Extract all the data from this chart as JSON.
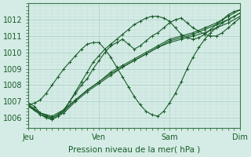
{
  "title": "",
  "xlabel": "Pression niveau de la mer( hPa )",
  "ylabel": "",
  "bg_color": "#d4ece5",
  "plot_bg_color": "#d4ece5",
  "grid_color_major": "#aaccc4",
  "grid_color_minor": "#bdd9d2",
  "line_color": "#1a5c2a",
  "marker_color": "#1a5c2a",
  "tick_label_color": "#1a5c2a",
  "axis_color": "#3a7a4a",
  "ylim": [
    1005.4,
    1013.0
  ],
  "yticks": [
    1006,
    1007,
    1008,
    1009,
    1010,
    1011,
    1012
  ],
  "day_labels": [
    "Jeu",
    "Ven",
    "Sam",
    "Dim"
  ],
  "day_positions": [
    0,
    72,
    144,
    216
  ],
  "total_hours": 216,
  "series": [
    {
      "x": [
        0,
        12,
        24,
        36,
        48,
        60,
        72,
        84,
        96,
        108,
        120,
        132,
        144,
        156,
        168,
        180,
        192,
        204,
        216
      ],
      "y": [
        1006.7,
        1006.3,
        1006.1,
        1006.5,
        1007.1,
        1007.7,
        1008.2,
        1008.7,
        1009.1,
        1009.5,
        1009.9,
        1010.3,
        1010.6,
        1010.8,
        1011.0,
        1011.2,
        1011.5,
        1011.8,
        1012.2
      ]
    },
    {
      "x": [
        0,
        12,
        24,
        36,
        48,
        60,
        72,
        84,
        96,
        108,
        120,
        132,
        144,
        156,
        168,
        180,
        192,
        204,
        216
      ],
      "y": [
        1006.7,
        1006.2,
        1005.9,
        1006.3,
        1007.0,
        1007.6,
        1008.1,
        1008.6,
        1009.1,
        1009.5,
        1009.9,
        1010.3,
        1010.7,
        1010.9,
        1011.1,
        1011.4,
        1011.7,
        1012.0,
        1012.4
      ]
    },
    {
      "x": [
        0,
        12,
        24,
        36,
        48,
        60,
        72,
        84,
        96,
        108,
        120,
        132,
        144,
        156,
        168,
        180,
        192,
        204,
        216
      ],
      "y": [
        1006.8,
        1006.3,
        1006.0,
        1006.4,
        1007.1,
        1007.7,
        1008.2,
        1008.8,
        1009.2,
        1009.6,
        1010.0,
        1010.4,
        1010.8,
        1011.0,
        1011.2,
        1011.5,
        1011.8,
        1012.2,
        1012.6
      ]
    },
    {
      "x": [
        0,
        6,
        12,
        18,
        24,
        30,
        36,
        42,
        48,
        54,
        60,
        66,
        72,
        78,
        84,
        90,
        96,
        102,
        108,
        114,
        120,
        126,
        132,
        138,
        144,
        150,
        156,
        162,
        168,
        174,
        180,
        186,
        192,
        198,
        204,
        210,
        216
      ],
      "y": [
        1006.9,
        1006.7,
        1006.3,
        1006.1,
        1006.0,
        1006.2,
        1006.5,
        1007.0,
        1007.5,
        1008.0,
        1008.4,
        1009.0,
        1009.5,
        1010.0,
        1010.4,
        1010.6,
        1010.8,
        1010.5,
        1010.2,
        1010.4,
        1010.7,
        1011.0,
        1011.2,
        1011.5,
        1011.8,
        1012.0,
        1012.1,
        1011.8,
        1011.5,
        1011.3,
        1011.1,
        1011.0,
        1011.0,
        1011.2,
        1011.5,
        1011.8,
        1012.1
      ]
    },
    {
      "x": [
        0,
        6,
        12,
        18,
        24,
        30,
        36,
        42,
        48,
        54,
        60,
        66,
        72,
        78,
        84,
        90,
        96,
        102,
        108,
        114,
        120,
        126,
        132,
        138,
        144,
        150,
        156,
        162,
        168,
        174,
        180,
        186,
        192,
        198,
        204,
        210,
        216
      ],
      "y": [
        1006.8,
        1006.5,
        1006.2,
        1006.0,
        1005.9,
        1006.1,
        1006.4,
        1007.0,
        1007.6,
        1008.2,
        1008.8,
        1009.4,
        1009.8,
        1010.2,
        1010.5,
        1010.8,
        1011.1,
        1011.4,
        1011.7,
        1011.9,
        1012.1,
        1012.2,
        1012.2,
        1012.1,
        1011.9,
        1011.5,
        1011.1,
        1010.9,
        1010.8,
        1010.9,
        1011.1,
        1011.4,
        1011.7,
        1012.0,
        1012.3,
        1012.5,
        1012.6
      ]
    },
    {
      "x": [
        0,
        6,
        12,
        18,
        24,
        30,
        36,
        42,
        48,
        54,
        60,
        66,
        72,
        78,
        84,
        90,
        96,
        102,
        108,
        114,
        120,
        126,
        132,
        138,
        144,
        150,
        156,
        162,
        168,
        174,
        180,
        186,
        192,
        198,
        204,
        210,
        216
      ],
      "y": [
        1006.8,
        1006.9,
        1007.1,
        1007.5,
        1008.0,
        1008.5,
        1009.0,
        1009.4,
        1009.8,
        1010.2,
        1010.5,
        1010.6,
        1010.6,
        1010.2,
        1009.7,
        1009.1,
        1008.5,
        1007.9,
        1007.3,
        1006.8,
        1006.4,
        1006.2,
        1006.1,
        1006.4,
        1006.9,
        1007.5,
        1008.2,
        1009.0,
        1009.7,
        1010.3,
        1010.8,
        1011.2,
        1011.5,
        1011.8,
        1012.0,
        1012.2,
        1012.4
      ]
    }
  ]
}
